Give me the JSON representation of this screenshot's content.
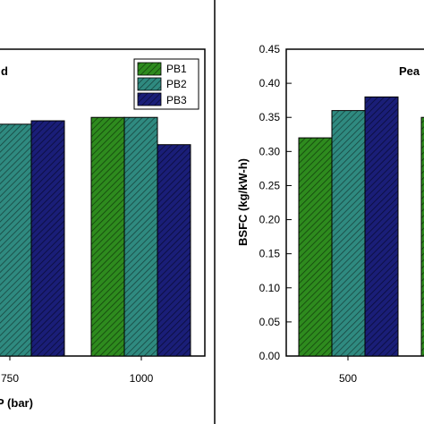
{
  "chart_data": [
    {
      "type": "bar",
      "panel": "left",
      "panel_label_partial": "d",
      "xlabel_partial": "P (bar)",
      "ylabel": "",
      "categories": [
        "750",
        "1000"
      ],
      "series": [
        {
          "name": "PB1",
          "values": [
            null,
            0.35
          ],
          "color": "#2e8b1e"
        },
        {
          "name": "PB2",
          "values": [
            0.34,
            0.35
          ],
          "color": "#2f8a80"
        },
        {
          "name": "PB3",
          "values": [
            0.345,
            0.31
          ],
          "color": "#1a1e78"
        }
      ],
      "ylim": [
        0.0,
        0.45
      ],
      "legend": {
        "placement": "top-right",
        "entries": [
          "PB1",
          "PB2",
          "PB3"
        ]
      },
      "grid": false
    },
    {
      "type": "bar",
      "panel": "right",
      "panel_label_partial": "Pea",
      "xlabel": "",
      "ylabel": "BSFC (kg/kW-h)",
      "categories": [
        "500"
      ],
      "series": [
        {
          "name": "PB1",
          "values": [
            0.32
          ],
          "color": "#2e8b1e"
        },
        {
          "name": "PB2",
          "values": [
            0.36
          ],
          "color": "#2f8a80"
        },
        {
          "name": "PB3",
          "values": [
            0.38
          ],
          "color": "#1a1e78"
        }
      ],
      "ylim": [
        0.0,
        0.45
      ],
      "yticks": [
        "0.00",
        "0.05",
        "0.10",
        "0.15",
        "0.20",
        "0.25",
        "0.30",
        "0.35",
        "0.40",
        "0.45"
      ],
      "grid": false
    }
  ]
}
